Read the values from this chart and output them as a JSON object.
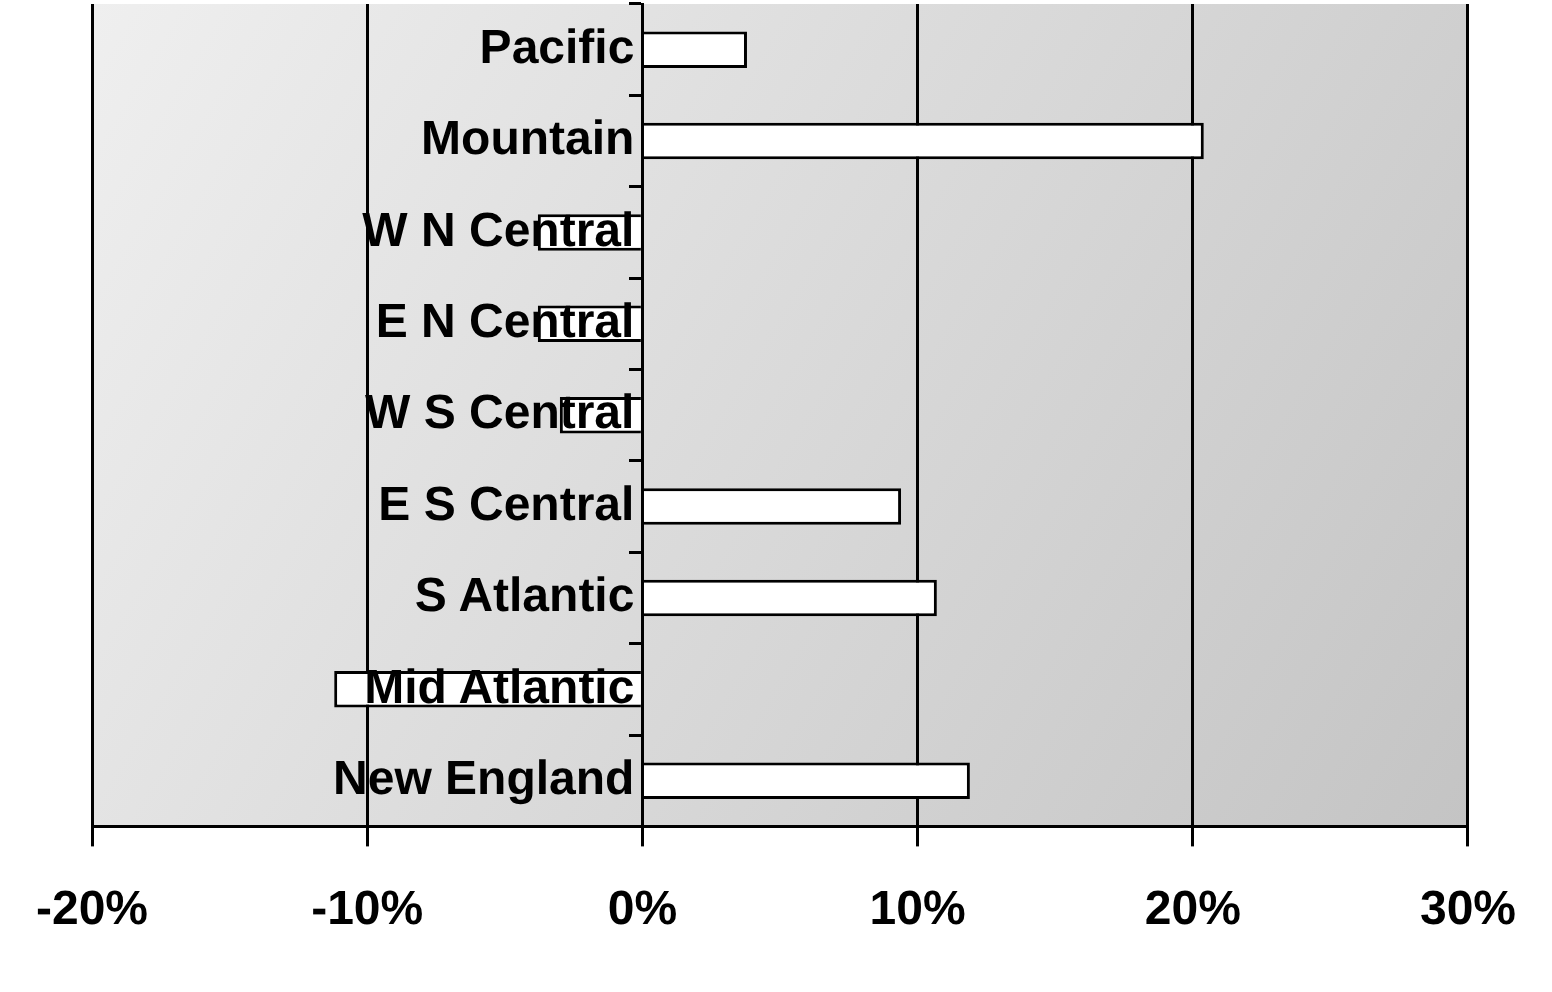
{
  "chart_data": {
    "type": "bar",
    "orientation": "horizontal",
    "categories": [
      "Pacific",
      "Mountain",
      "W N Central",
      "E N Central",
      "W S Central",
      "E S Central",
      "S Atlantic",
      "Mid Atlantic",
      "New England"
    ],
    "values": [
      3.8,
      20.4,
      -3.8,
      -3.8,
      -3.0,
      9.4,
      10.7,
      -11.2,
      11.9
    ],
    "color": "#ffffff",
    "xlim": [
      -20,
      30
    ],
    "xticks": [
      {
        "value": -20,
        "label": "-20%"
      },
      {
        "value": -10,
        "label": "-10%"
      },
      {
        "value": 0,
        "label": "0%"
      },
      {
        "value": 10,
        "label": "10%"
      },
      {
        "value": 20,
        "label": "20%"
      },
      {
        "value": 30,
        "label": "30%"
      }
    ],
    "grid": "x"
  }
}
